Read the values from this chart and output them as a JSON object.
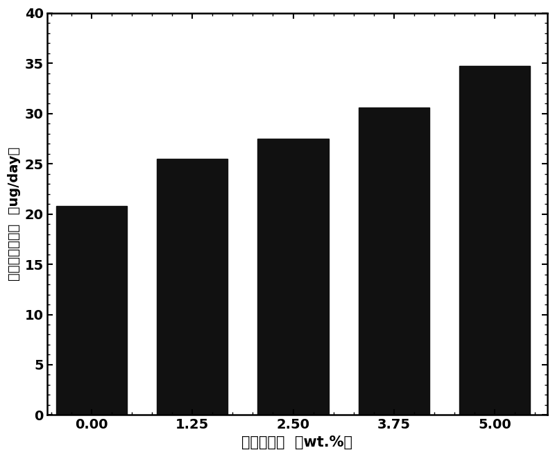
{
  "categories": [
    "0.00",
    "1.25",
    "2.50",
    "3.75",
    "5.00"
  ],
  "values": [
    20.8,
    25.5,
    27.5,
    30.6,
    34.7
  ],
  "bar_color": "#111111",
  "bar_positions": [
    0,
    1.25,
    2.5,
    3.75,
    5.0
  ],
  "bar_width": 0.88,
  "xlabel": "淀粉添加量  （wt.%）",
  "ylabel_chinese": "铜离子释放速率",
  "ylabel_unit": "（ug/day）",
  "xlim": [
    -0.55,
    5.65
  ],
  "ylim": [
    0,
    40
  ],
  "yticks": [
    0,
    5,
    10,
    15,
    20,
    25,
    30,
    35,
    40
  ],
  "xticks": [
    0.0,
    1.25,
    2.5,
    3.75,
    5.0
  ],
  "xlabel_fontsize": 15,
  "ylabel_fontsize": 14,
  "tick_fontsize": 14,
  "background_color": "#ffffff"
}
